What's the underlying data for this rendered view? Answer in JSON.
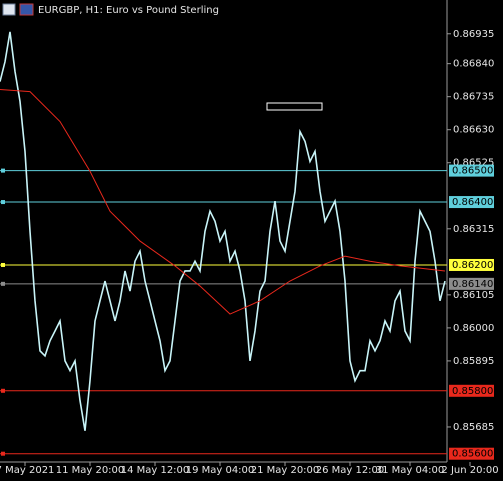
{
  "chart_data": {
    "type": "line",
    "title": "EURGBP, H1:  Euro vs Pound Sterling",
    "xlim": [
      0,
      89.4
    ],
    "ylim": [
      0.8558,
      0.87036
    ],
    "xticks": [
      {
        "value": 5,
        "label": "7 May 2021"
      },
      {
        "value": 18,
        "label": "11 May 20:00"
      },
      {
        "value": 31,
        "label": "14 May 12:00"
      },
      {
        "value": 44,
        "label": "19 May 04:00"
      },
      {
        "value": 57,
        "label": "21 May 20:00"
      },
      {
        "value": 70,
        "label": "26 May 12:00"
      },
      {
        "value": 82,
        "label": "31 May 04:00"
      },
      {
        "value": 94,
        "label": "2 Jun 20:00"
      }
    ],
    "yticks": [
      0.86935,
      {
        "value": 0.8684,
        "label": "0.86840"
      },
      0.86735,
      {
        "value": 0.8663,
        "label": "0.86630"
      },
      0.86525,
      0.86315,
      0.86105,
      {
        "value": 0.86,
        "label": "0.86000"
      },
      0.85895,
      0.85685
    ],
    "series": [
      {
        "color": "#c8f4f8",
        "x": [
          0,
          1,
          2,
          3,
          4,
          5,
          6,
          7,
          8,
          9,
          10,
          11,
          12,
          13,
          14,
          15,
          16,
          17,
          18,
          19,
          20,
          21,
          22,
          23,
          24,
          25,
          26,
          27,
          28,
          29,
          30,
          31,
          32,
          33,
          34,
          35,
          36,
          37,
          38,
          39,
          40,
          41,
          42,
          43,
          44,
          45,
          46,
          47,
          48,
          49,
          50,
          51,
          52,
          53,
          54,
          55,
          56,
          57,
          58,
          59,
          60,
          61,
          62,
          63,
          64,
          65,
          66,
          67,
          68,
          69,
          70,
          71,
          72,
          73,
          74,
          75,
          76,
          77,
          78,
          79,
          80,
          81,
          82,
          83,
          84,
          85,
          86,
          87,
          88,
          89
        ],
        "values": [
          0.86783,
          0.86846,
          0.86941,
          0.86815,
          0.8672,
          0.86561,
          0.86307,
          0.86086,
          0.85927,
          0.85911,
          0.85959,
          0.8599,
          0.86022,
          0.85895,
          0.85864,
          0.85895,
          0.85769,
          0.85673,
          0.85832,
          0.86022,
          0.86086,
          0.86149,
          0.86086,
          0.86022,
          0.86086,
          0.86181,
          0.86117,
          0.86212,
          0.86244,
          0.86149,
          0.86086,
          0.86022,
          0.85959,
          0.85864,
          0.85895,
          0.86022,
          0.86149,
          0.86181,
          0.86181,
          0.86212,
          0.86181,
          0.86307,
          0.86371,
          0.86339,
          0.86276,
          0.86307,
          0.86212,
          0.86244,
          0.86181,
          0.86086,
          0.85895,
          0.8599,
          0.86117,
          0.86149,
          0.86307,
          0.86403,
          0.86276,
          0.86244,
          0.86339,
          0.86434,
          0.86624,
          0.86593,
          0.86529,
          0.86561,
          0.86434,
          0.86339,
          0.86371,
          0.86403,
          0.86307,
          0.86149,
          0.85895,
          0.85832,
          0.85864,
          0.85864,
          0.85959,
          0.85927,
          0.85959,
          0.86022,
          0.8599,
          0.86086,
          0.86117,
          0.8599,
          0.85959,
          0.86212,
          0.86371,
          0.86339,
          0.86307,
          0.86212,
          0.86086,
          0.86149
        ]
      },
      {
        "color": "#e8281c",
        "x": [
          0,
          6,
          12,
          18,
          22,
          28,
          35,
          40,
          46,
          52,
          58,
          64,
          69,
          74,
          80,
          89
        ],
        "values": [
          0.86758,
          0.86751,
          0.86656,
          0.86498,
          0.86371,
          0.86276,
          0.86197,
          0.86133,
          0.86044,
          0.86086,
          0.86149,
          0.86197,
          0.86228,
          0.86212,
          0.86197,
          0.86181
        ]
      }
    ],
    "levels": [
      {
        "value": 0.865,
        "label": "0.86500",
        "color": "#5fcfdc"
      },
      {
        "value": 0.864,
        "label": "0.86400",
        "color": "#5fcfdc"
      },
      {
        "value": 0.862,
        "label": "0.86200",
        "color": "#ffff3c"
      },
      {
        "value": 0.8614,
        "label": "0.86140",
        "color": "#8c8c8c"
      },
      {
        "value": 0.858,
        "label": "0.85800",
        "color": "#e8281c"
      },
      {
        "value": 0.856,
        "label": "0.85600",
        "color": "#e8281c"
      }
    ]
  }
}
